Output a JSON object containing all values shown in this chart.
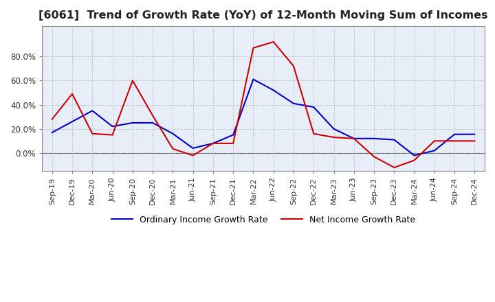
{
  "title": "[6061]  Trend of Growth Rate (YoY) of 12-Month Moving Sum of Incomes",
  "title_fontsize": 11.5,
  "ylim": [
    -0.15,
    1.05
  ],
  "yticks": [
    0.0,
    0.2,
    0.4,
    0.6,
    0.8
  ],
  "background_color": "#ffffff",
  "plot_bg_color": "#e8eef8",
  "grid_color": "#aaaaaa",
  "ordinary_color": "#0000cc",
  "net_color": "#cc0000",
  "legend_labels": [
    "Ordinary Income Growth Rate",
    "Net Income Growth Rate"
  ],
  "x_labels": [
    "Sep-19",
    "Dec-19",
    "Mar-20",
    "Jun-20",
    "Sep-20",
    "Dec-20",
    "Mar-21",
    "Jun-21",
    "Sep-21",
    "Dec-21",
    "Mar-22",
    "Jun-22",
    "Sep-22",
    "Dec-22",
    "Mar-23",
    "Jun-23",
    "Sep-23",
    "Dec-23",
    "Mar-24",
    "Jun-24",
    "Sep-24",
    "Dec-24"
  ],
  "ordinary_income": [
    0.17,
    0.26,
    0.35,
    0.22,
    0.25,
    0.25,
    0.16,
    0.04,
    0.08,
    0.15,
    0.61,
    0.52,
    0.41,
    0.38,
    0.2,
    0.12,
    0.12,
    0.11,
    -0.02,
    0.02,
    0.155,
    0.155
  ],
  "net_income": [
    0.28,
    0.49,
    0.16,
    0.15,
    0.6,
    0.31,
    0.035,
    -0.02,
    0.08,
    0.08,
    0.87,
    0.92,
    0.72,
    0.16,
    0.13,
    0.12,
    -0.03,
    -0.12,
    -0.06,
    0.1,
    0.1,
    0.1
  ]
}
